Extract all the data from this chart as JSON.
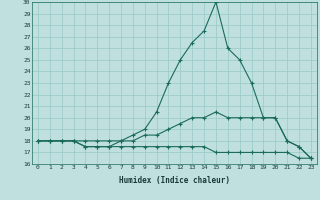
{
  "xlabel": "Humidex (Indice chaleur)",
  "x": [
    0,
    1,
    2,
    3,
    4,
    5,
    6,
    7,
    8,
    9,
    10,
    11,
    12,
    13,
    14,
    15,
    16,
    17,
    18,
    19,
    20,
    21,
    22,
    23
  ],
  "line1": [
    18,
    18,
    18,
    18,
    18,
    18,
    18,
    18,
    18.5,
    19,
    20.5,
    23,
    25,
    26.5,
    27.5,
    30,
    26,
    25,
    23,
    20,
    20,
    18,
    17.5,
    16.5
  ],
  "line2": [
    18,
    18,
    18,
    18,
    17.5,
    17.5,
    17.5,
    18,
    18,
    18.5,
    18.5,
    19,
    19.5,
    20,
    20,
    20.5,
    20,
    20,
    20,
    20,
    20,
    18,
    17.5,
    16.5
  ],
  "line3": [
    18,
    18,
    18,
    18,
    17.5,
    17.5,
    17.5,
    17.5,
    17.5,
    17.5,
    17.5,
    17.5,
    17.5,
    17.5,
    17.5,
    17,
    17,
    17,
    17,
    17,
    17,
    17,
    16.5,
    16.5
  ],
  "line_color": "#1a6b5a",
  "bg_color": "#c0e0e0",
  "grid_color": "#98c8c8",
  "ylim": [
    16,
    30
  ],
  "xlim_min": -0.5,
  "xlim_max": 23.5,
  "yticks": [
    16,
    17,
    18,
    19,
    20,
    21,
    22,
    23,
    24,
    25,
    26,
    27,
    28,
    29,
    30
  ],
  "xticks": [
    0,
    1,
    2,
    3,
    4,
    5,
    6,
    7,
    8,
    9,
    10,
    11,
    12,
    13,
    14,
    15,
    16,
    17,
    18,
    19,
    20,
    21,
    22,
    23
  ],
  "marker": "+",
  "markersize": 3,
  "markeredgewidth": 0.8,
  "linewidth": 0.8,
  "tick_fontsize": 4.5,
  "xlabel_fontsize": 5.5
}
